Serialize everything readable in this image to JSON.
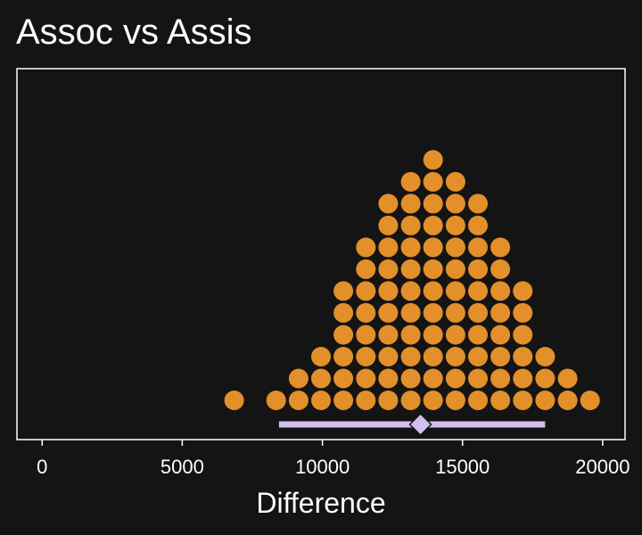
{
  "chart_data": {
    "type": "dotplot",
    "title": "Assoc vs Assis",
    "xlabel": "Difference",
    "ylabel": "",
    "xlim": [
      -900,
      20800
    ],
    "x_ticks": [
      0,
      5000,
      10000,
      15000,
      20000
    ],
    "x_tick_labels": [
      "0",
      "5000",
      "10000",
      "15000",
      "20000"
    ],
    "grid": false,
    "dot_color": "#e38f2a",
    "interval_color": "#d2bff0",
    "bin_width": 780,
    "bins": [
      {
        "x": 6850,
        "count": 1
      },
      {
        "x": 8350,
        "count": 1
      },
      {
        "x": 9150,
        "count": 2
      },
      {
        "x": 9950,
        "count": 3
      },
      {
        "x": 10750,
        "count": 6
      },
      {
        "x": 11550,
        "count": 8
      },
      {
        "x": 12350,
        "count": 10
      },
      {
        "x": 13150,
        "count": 11
      },
      {
        "x": 13950,
        "count": 12
      },
      {
        "x": 14750,
        "count": 11
      },
      {
        "x": 15550,
        "count": 10
      },
      {
        "x": 16350,
        "count": 8
      },
      {
        "x": 17150,
        "count": 6
      },
      {
        "x": 17950,
        "count": 3
      },
      {
        "x": 18750,
        "count": 2
      },
      {
        "x": 19550,
        "count": 1
      }
    ],
    "point_estimate": 13500,
    "interval": [
      8450,
      17950
    ]
  }
}
